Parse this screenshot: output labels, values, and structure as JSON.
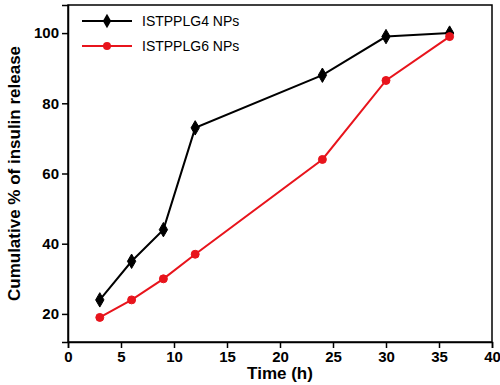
{
  "chart_data": {
    "type": "line",
    "x_label": "Time (h)",
    "y_label": "Cumulative % of insulin release",
    "x": [
      3,
      6,
      9,
      12,
      24,
      30,
      36
    ],
    "series": [
      {
        "name": "ISTPPLG4 NPs",
        "color": "#000000",
        "marker": "diamond",
        "values": [
          24,
          35,
          44,
          73,
          88,
          99,
          100
        ]
      },
      {
        "name": "ISTPPLG6 NPs",
        "color": "#e8141c",
        "marker": "circle",
        "values": [
          19,
          24,
          30,
          37,
          64,
          86.5,
          99
        ]
      }
    ],
    "xlim": [
      0,
      40
    ],
    "xticks": [
      0,
      5,
      10,
      15,
      20,
      25,
      30,
      35,
      40
    ],
    "ylim": [
      12,
      108
    ],
    "yticks": [
      20,
      40,
      60,
      80,
      100
    ],
    "legend": "upper left",
    "grid": false
  }
}
